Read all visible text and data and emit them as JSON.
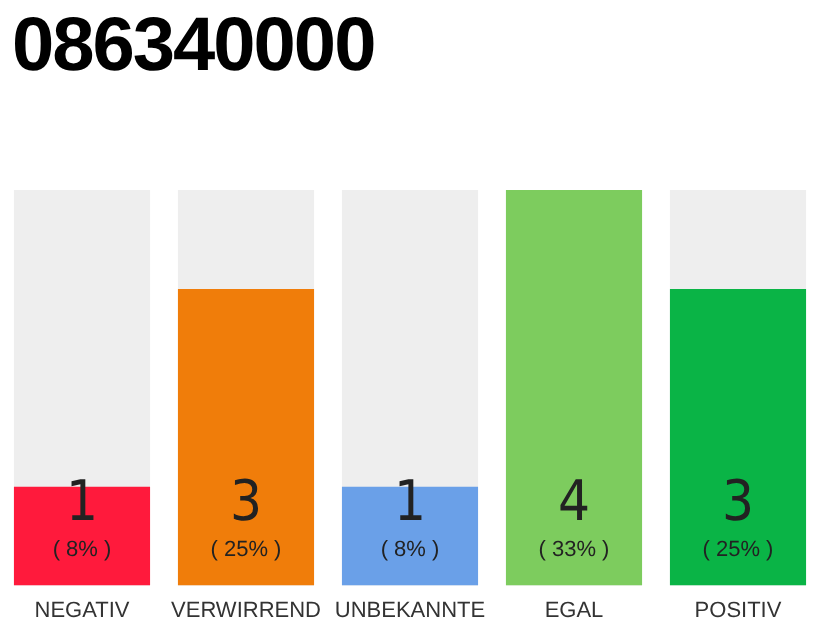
{
  "chart_data": {
    "type": "bar",
    "title": "086340000",
    "categories": [
      "NEGATIV",
      "VERWIRREND",
      "UNBEKANNTE",
      "EGAL",
      "POSITIV"
    ],
    "values": [
      1,
      3,
      1,
      4,
      3
    ],
    "colors": [
      "#ff1a3c",
      "#f07d0a",
      "#6aa0e8",
      "#7dcc5e",
      "#0ab446"
    ],
    "data_labels": true,
    "annotations": [
      "( 8% )",
      "( 25% )",
      "( 8% )",
      "( 33% )",
      "( 25% )"
    ],
    "grid": false,
    "legend": false
  }
}
